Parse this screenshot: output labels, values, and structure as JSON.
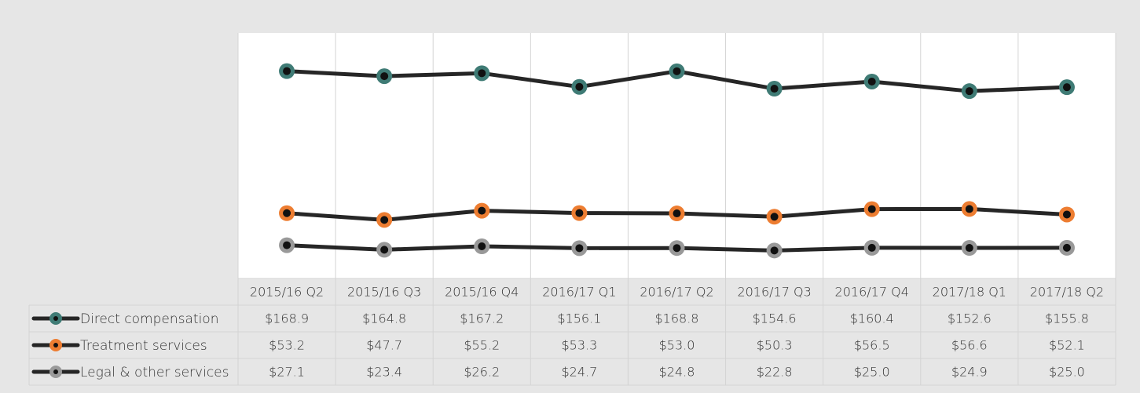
{
  "chart_data": {
    "type": "line",
    "categories": [
      "2015/16 Q2",
      "2015/16 Q3",
      "2015/16 Q4",
      "2016/17 Q1",
      "2016/17 Q2",
      "2016/17 Q3",
      "2016/17 Q4",
      "2017/18 Q1",
      "2017/18 Q2"
    ],
    "series": [
      {
        "name": "Direct compensation",
        "color": "#3f7b75",
        "values": [
          168.9,
          164.8,
          167.2,
          156.1,
          168.8,
          154.6,
          160.4,
          152.6,
          155.8
        ],
        "value_labels": [
          "$168.9",
          "$164.8",
          "$167.2",
          "$156.1",
          "$168.8",
          "$154.6",
          "$160.4",
          "$152.6",
          "$155.8"
        ]
      },
      {
        "name": "Treatment services",
        "color": "#ed7d31",
        "values": [
          53.2,
          47.7,
          55.2,
          53.3,
          53.0,
          50.3,
          56.5,
          56.6,
          52.1
        ],
        "value_labels": [
          "$53.2",
          "$47.7",
          "$55.2",
          "$53.3",
          "$53.0",
          "$50.3",
          "$56.5",
          "$56.6",
          "$52.1"
        ]
      },
      {
        "name": "Legal & other services",
        "color": "#999999",
        "values": [
          27.1,
          23.4,
          26.2,
          24.7,
          24.8,
          22.8,
          25.0,
          24.9,
          25.0
        ],
        "value_labels": [
          "$27.1",
          "$23.4",
          "$26.2",
          "$24.7",
          "$24.8",
          "$22.8",
          "$25.0",
          "$24.9",
          "$25.0"
        ]
      }
    ],
    "ylim": [
      0,
      200
    ]
  }
}
